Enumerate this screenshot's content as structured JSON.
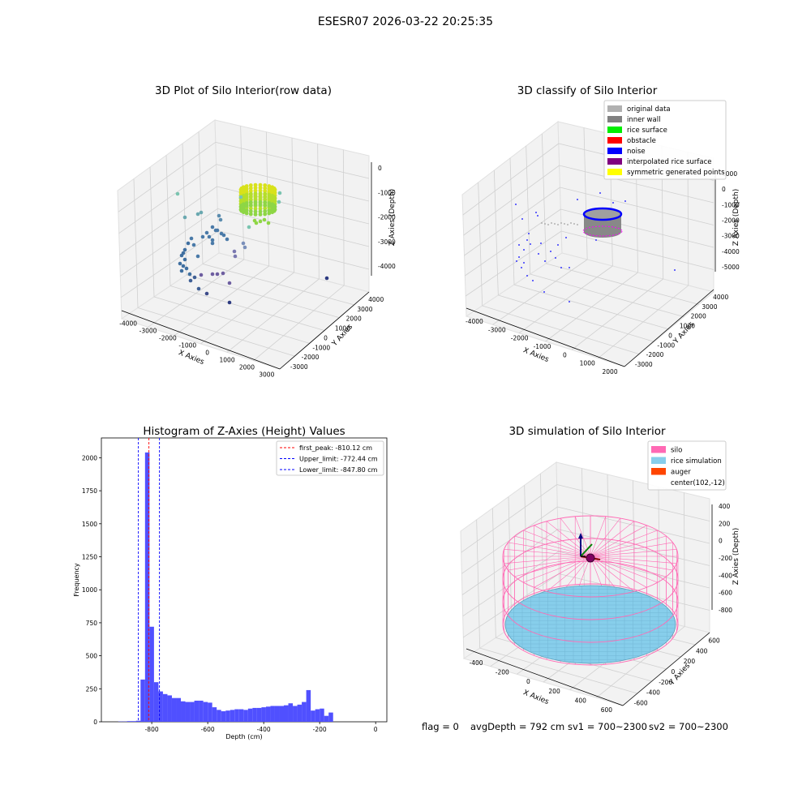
{
  "suptitle": "ESESR07 2026-03-22 20:25:35",
  "footer": {
    "flag": "flag = 0",
    "avg_depth": "avgDepth = 792 cm",
    "sv1": "sv1 = 700~2300",
    "sv2": "sv2 = 700~2300"
  },
  "colors": {
    "hist_bar": "#5050ff",
    "silo": "#ff69b4",
    "rice": "#87ceeb",
    "auger": "#ff4500",
    "noise": "#0000ff",
    "original": "#b0b0b0",
    "inner_wall": "#808080",
    "rice_surface": "#00ee00",
    "obstacle": "#ff0000",
    "interp": "#800080",
    "sym": "#ffff00"
  },
  "chart_data": [
    {
      "type": "scatter",
      "projection": "3d",
      "title": "3D Plot of Silo Interior(row data)",
      "xlabel": "X Axies",
      "ylabel": "Y Axies",
      "zlabel": "Z Axies (Depth)",
      "x_ticks": [
        "-4000",
        "-3000",
        "-2000",
        "-1000",
        "0",
        "1000",
        "2000",
        "3000"
      ],
      "y_ticks": [
        "-3000",
        "-2000",
        "-1000",
        "0",
        "1000",
        "2000",
        "3000",
        "4000"
      ],
      "z_ticks": [
        "0",
        "-1000",
        "-2000",
        "-3000",
        "-4000"
      ],
      "xlim": [
        -4200,
        3000
      ],
      "ylim": [
        -3300,
        4300
      ],
      "zlim": [
        -4700,
        300
      ],
      "colormap": "viridis (by depth)"
    },
    {
      "type": "scatter",
      "projection": "3d",
      "title": "3D classify of Silo Interior",
      "xlabel": "X Axies",
      "ylabel": "Y Axies",
      "zlabel": "Z Axies (Depth)",
      "x_ticks": [
        "-4000",
        "-3000",
        "-2000",
        "-1000",
        "0",
        "1000",
        "2000"
      ],
      "y_ticks": [
        "-3000",
        "-2000",
        "-1000",
        "0",
        "1000",
        "2000",
        "3000",
        "4000"
      ],
      "z_ticks": [
        "1000",
        "0",
        "-1000",
        "-2000",
        "-3000",
        "-4000",
        "-5000"
      ],
      "legend": [
        {
          "label": "original data",
          "color": "#b0b0b0"
        },
        {
          "label": "inner wall",
          "color": "#808080"
        },
        {
          "label": "rice surface",
          "color": "#00ee00"
        },
        {
          "label": "obstacle",
          "color": "#ff0000"
        },
        {
          "label": "noise",
          "color": "#0000ff"
        },
        {
          "label": "interpolated rice surface",
          "color": "#800080"
        },
        {
          "label": "symmetric generated points",
          "color": "#ffff00"
        }
      ],
      "legend_loc": "top-right"
    },
    {
      "type": "bar",
      "title": "Histogram of Z-Axies (Height) Values",
      "xlabel": "Depth (cm)",
      "ylabel": "Frequency",
      "xlim": [
        -980,
        40
      ],
      "ylim": [
        0,
        2150
      ],
      "x_ticks": [
        -800,
        -600,
        -400,
        -200,
        0
      ],
      "y_ticks": [
        0,
        250,
        500,
        750,
        1000,
        1250,
        1500,
        1750,
        2000
      ],
      "bin_width": 16,
      "bins_start": -920,
      "values": [
        2,
        2,
        5,
        5,
        8,
        320,
        2040,
        720,
        300,
        230,
        210,
        200,
        180,
        180,
        155,
        150,
        150,
        160,
        160,
        150,
        145,
        110,
        90,
        80,
        85,
        90,
        95,
        95,
        90,
        100,
        105,
        105,
        110,
        115,
        120,
        120,
        120,
        125,
        140,
        120,
        130,
        150,
        240,
        85,
        95,
        100,
        45,
        70
      ],
      "vlines": [
        {
          "label": "first_peak: -810.12 cm",
          "x": -810.12,
          "color": "#ff0000"
        },
        {
          "label": "Upper_limit: -772.44 cm",
          "x": -772.44,
          "color": "#0000ff"
        },
        {
          "label": "Lower_limit: -847.80 cm",
          "x": -847.8,
          "color": "#0000ff"
        }
      ],
      "legend_loc": "top-right"
    },
    {
      "type": "surface",
      "projection": "3d",
      "title": "3D simulation of Silo Interior",
      "xlabel": "X Axies",
      "ylabel": "Y Axies",
      "zlabel": "Z Axies (Depth)",
      "x_ticks": [
        "-400",
        "-200",
        "0",
        "200",
        "400",
        "600"
      ],
      "y_ticks": [
        "-600",
        "-400",
        "-200",
        "0",
        "200",
        "400",
        "600"
      ],
      "z_ticks": [
        "400",
        "200",
        "0",
        "-200",
        "-400",
        "-600",
        "-800"
      ],
      "legend": [
        {
          "label": "silo",
          "color": "#ff69b4"
        },
        {
          "label": "rice simulation",
          "color": "#87ceeb"
        },
        {
          "label": "auger",
          "color": "#ff4500"
        },
        {
          "label": "center(102,-12)",
          "color": ""
        }
      ],
      "legend_loc": "top-right"
    }
  ]
}
